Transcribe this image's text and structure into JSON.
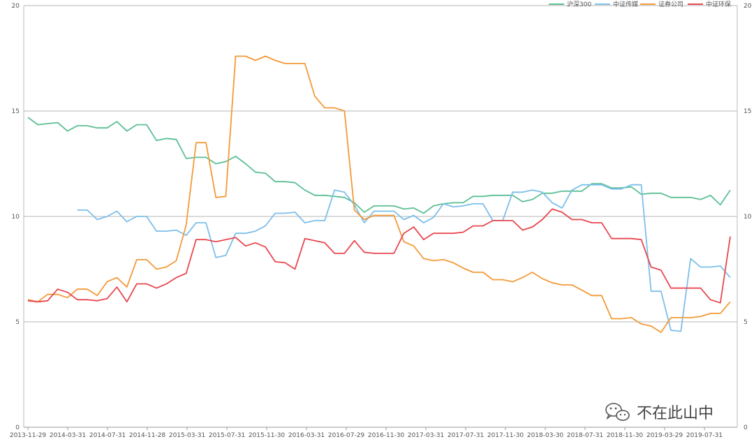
{
  "chart_data": {
    "type": "line",
    "title": "",
    "xlabel": "",
    "ylabel": "",
    "ylim": [
      0,
      20
    ],
    "y_ticks": [
      "0",
      "5",
      "10",
      "15",
      "20"
    ],
    "right_axis_ticks": [
      "0",
      "5",
      "10",
      "15",
      "20"
    ],
    "grid": "horizontal",
    "legend_position": "top-right",
    "x_tick_labels": [
      "2013-11-29",
      "2014-03-31",
      "2014-07-31",
      "2014-11-28",
      "2015-03-31",
      "2015-07-31",
      "2015-11-30",
      "2016-03-31",
      "2016-07-29",
      "2016-11-30",
      "2017-03-31",
      "2017-07-31",
      "2017-11-30",
      "2018-03-30",
      "2018-07-31",
      "2018-11-30",
      "2019-03-29",
      "2019-07-31"
    ],
    "series": [
      {
        "name": "沪深300",
        "color": "#5bbf94",
        "values": [
          14.7,
          14.35,
          14.4,
          14.45,
          14.05,
          14.3,
          14.3,
          14.2,
          14.2,
          14.5,
          14.05,
          14.35,
          14.35,
          13.6,
          13.7,
          13.65,
          12.75,
          12.8,
          12.8,
          12.5,
          12.6,
          12.85,
          12.5,
          12.1,
          12.05,
          11.65,
          11.65,
          11.6,
          11.25,
          11.0,
          11.0,
          10.95,
          10.9,
          10.65,
          10.2,
          10.5,
          10.5,
          10.5,
          10.35,
          10.4,
          10.15,
          10.5,
          10.6,
          10.65,
          10.65,
          10.95,
          10.95,
          11.0,
          11.0,
          11.0,
          10.7,
          10.8,
          11.1,
          11.1,
          11.2,
          11.2,
          11.2,
          11.55,
          11.55,
          11.35,
          11.35,
          11.4,
          11.05,
          11.1,
          11.1,
          10.9,
          10.9,
          10.9,
          10.8,
          11.0,
          10.55,
          11.25
        ]
      },
      {
        "name": "中证传媒",
        "color": "#7cbfe9",
        "values": [
          null,
          null,
          null,
          null,
          null,
          10.3,
          10.3,
          9.85,
          10.0,
          10.25,
          9.75,
          10.0,
          10.0,
          9.3,
          9.3,
          9.35,
          9.1,
          9.7,
          9.7,
          8.05,
          8.15,
          9.2,
          9.2,
          9.3,
          9.55,
          10.15,
          10.15,
          10.2,
          9.7,
          9.8,
          9.8,
          11.25,
          11.15,
          10.55,
          9.7,
          10.25,
          10.25,
          10.25,
          9.85,
          10.05,
          9.7,
          9.95,
          10.6,
          10.45,
          10.5,
          10.6,
          10.6,
          9.8,
          9.8,
          11.15,
          11.15,
          11.25,
          11.15,
          10.65,
          10.4,
          11.25,
          11.5,
          11.5,
          11.5,
          11.3,
          11.3,
          11.5,
          11.5,
          6.45,
          6.45,
          4.6,
          4.55,
          8.0,
          7.6,
          7.6,
          7.65,
          7.1
        ]
      },
      {
        "name": "证券公司",
        "color": "#f39a38",
        "values": [
          6.05,
          5.95,
          6.3,
          6.3,
          6.15,
          6.55,
          6.55,
          6.25,
          6.9,
          7.1,
          6.65,
          7.95,
          7.95,
          7.5,
          7.6,
          7.9,
          9.6,
          13.5,
          13.5,
          10.9,
          10.95,
          17.6,
          17.6,
          17.4,
          17.6,
          17.4,
          17.25,
          17.25,
          17.25,
          15.7,
          15.15,
          15.15,
          15.0,
          10.3,
          9.85,
          10.05,
          10.05,
          10.05,
          8.8,
          8.6,
          8.0,
          7.9,
          7.95,
          7.8,
          7.55,
          7.35,
          7.35,
          7.0,
          7.0,
          6.9,
          7.1,
          7.35,
          7.05,
          6.85,
          6.75,
          6.75,
          6.5,
          6.25,
          6.25,
          5.15,
          5.15,
          5.2,
          4.9,
          4.8,
          4.5,
          5.2,
          5.2,
          5.2,
          5.25,
          5.4,
          5.4,
          5.95
        ]
      },
      {
        "name": "中证环保",
        "color": "#e8474f",
        "values": [
          6.0,
          5.95,
          6.0,
          6.55,
          6.4,
          6.05,
          6.05,
          6.0,
          6.1,
          6.65,
          5.95,
          6.8,
          6.8,
          6.6,
          6.8,
          7.1,
          7.3,
          8.9,
          8.9,
          8.8,
          8.9,
          9.0,
          8.6,
          8.75,
          8.55,
          7.85,
          7.8,
          7.5,
          8.95,
          8.85,
          8.75,
          8.25,
          8.25,
          8.85,
          8.3,
          8.25,
          8.25,
          8.25,
          9.2,
          9.5,
          8.9,
          9.2,
          9.2,
          9.2,
          9.25,
          9.55,
          9.55,
          9.8,
          9.8,
          9.8,
          9.35,
          9.5,
          9.85,
          10.35,
          10.2,
          9.85,
          9.85,
          9.7,
          9.7,
          8.95,
          8.95,
          8.95,
          8.9,
          7.6,
          7.45,
          6.6,
          6.6,
          6.6,
          6.6,
          6.05,
          5.9,
          9.05
        ]
      }
    ]
  },
  "watermark": {
    "text": "不在此山中",
    "icon": "wechat-logo-icon"
  }
}
